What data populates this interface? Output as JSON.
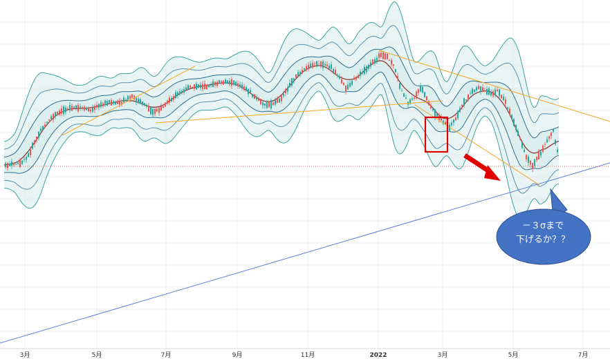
{
  "chart_data": {
    "type": "candlestick",
    "indicator": "Bollinger Bands (±1σ, ±2σ, ±3σ)",
    "x_tick_labels": [
      "3月",
      "5月",
      "7月",
      "9月",
      "11月",
      "2022",
      "3月",
      "5月",
      "7月"
    ],
    "y_tick_labels": [],
    "grid": true,
    "legend": "none",
    "price_series": {
      "name": "",
      "points_mid": [
        [
          0,
          242
        ],
        [
          10,
          240
        ],
        [
          20,
          238
        ],
        [
          30,
          236
        ],
        [
          40,
          228
        ],
        [
          50,
          205
        ],
        [
          60,
          188
        ],
        [
          70,
          175
        ],
        [
          80,
          166
        ],
        [
          90,
          160
        ],
        [
          100,
          156
        ],
        [
          110,
          156
        ],
        [
          120,
          157
        ],
        [
          130,
          160
        ],
        [
          140,
          155
        ],
        [
          150,
          150
        ],
        [
          160,
          148
        ],
        [
          170,
          150
        ],
        [
          180,
          146
        ],
        [
          190,
          140
        ],
        [
          200,
          146
        ],
        [
          210,
          152
        ],
        [
          220,
          162
        ],
        [
          230,
          160
        ],
        [
          240,
          150
        ],
        [
          250,
          142
        ],
        [
          260,
          134
        ],
        [
          270,
          128
        ],
        [
          280,
          126
        ],
        [
          290,
          125
        ],
        [
          300,
          124
        ],
        [
          310,
          122
        ],
        [
          320,
          119
        ],
        [
          330,
          118
        ],
        [
          340,
          120
        ],
        [
          350,
          125
        ],
        [
          360,
          132
        ],
        [
          370,
          142
        ],
        [
          380,
          150
        ],
        [
          390,
          152
        ],
        [
          400,
          148
        ],
        [
          410,
          138
        ],
        [
          420,
          122
        ],
        [
          430,
          108
        ],
        [
          440,
          100
        ],
        [
          450,
          95
        ],
        [
          460,
          92
        ],
        [
          470,
          94
        ],
        [
          480,
          98
        ],
        [
          490,
          112
        ],
        [
          500,
          128
        ],
        [
          510,
          118
        ],
        [
          520,
          108
        ],
        [
          530,
          100
        ],
        [
          540,
          90
        ],
        [
          550,
          80
        ],
        [
          560,
          82
        ],
        [
          570,
          96
        ],
        [
          580,
          130
        ],
        [
          590,
          150
        ],
        [
          600,
          140
        ],
        [
          610,
          128
        ],
        [
          620,
          150
        ],
        [
          630,
          165
        ],
        [
          640,
          175
        ],
        [
          650,
          185
        ],
        [
          660,
          170
        ],
        [
          670,
          150
        ],
        [
          680,
          135
        ],
        [
          690,
          128
        ],
        [
          700,
          130
        ],
        [
          710,
          135
        ],
        [
          720,
          132
        ],
        [
          730,
          145
        ],
        [
          740,
          170
        ],
        [
          750,
          195
        ],
        [
          760,
          225
        ],
        [
          770,
          240
        ],
        [
          780,
          225
        ],
        [
          790,
          205
        ],
        [
          800,
          190
        ],
        [
          808,
          228
        ]
      ],
      "last_close_line": true
    },
    "annotations": {
      "trendlines": [
        {
          "name": "support-long",
          "color": "#5b7fdc"
        },
        {
          "name": "resistance-descending",
          "color": "#f5a623"
        },
        {
          "name": "support-short",
          "color": "#f5a623"
        }
      ],
      "highlight_box_color": "#e00000",
      "arrow_color": "#e00000",
      "callout": {
        "line1": "－３σまで",
        "line2": "下げるか？？",
        "fill": "#4472c4",
        "stroke": "#2f4f8f"
      }
    },
    "colors": {
      "up": "#26a69a",
      "down": "#ef5350",
      "middle_band": "#8b3a3a",
      "sigma1": "#2e6d8e",
      "sigma2": "#5a8fae",
      "sigma3": "#3aa5a0",
      "band_fill": "#cfe9e7"
    }
  }
}
